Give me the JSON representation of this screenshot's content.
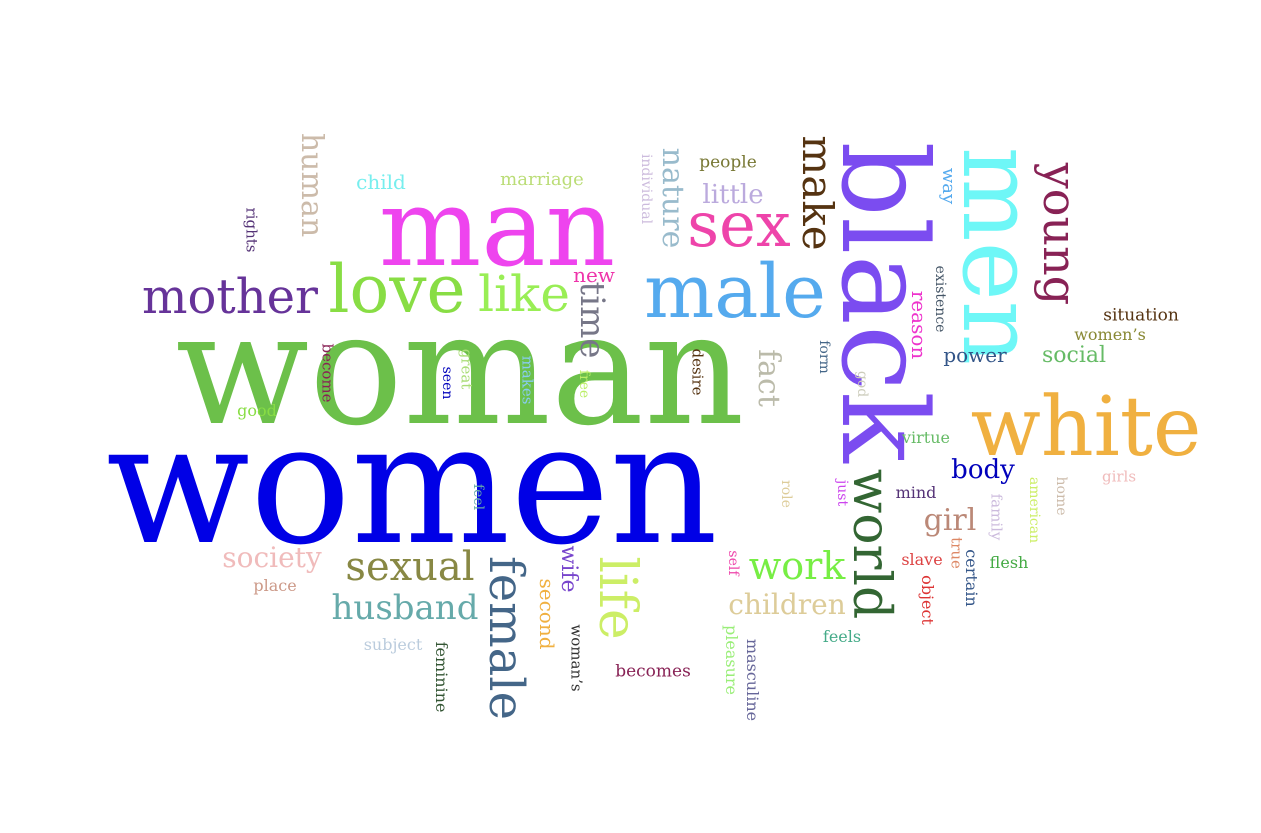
{
  "word_cloud": {
    "words": [
      {
        "key": "women",
        "text": "women",
        "color": "#0000e6"
      },
      {
        "key": "woman",
        "text": "woman",
        "color": "#6cc04a"
      },
      {
        "key": "man",
        "text": "man",
        "color": "#ee44ee"
      },
      {
        "key": "black",
        "text": "black",
        "color": "#7b4cf0"
      },
      {
        "key": "men",
        "text": "men",
        "color": "#6ef7f7"
      },
      {
        "key": "white",
        "text": "white",
        "color": "#f0b040"
      },
      {
        "key": "male",
        "text": "male",
        "color": "#55aaee"
      },
      {
        "key": "love",
        "text": "love",
        "color": "#88dd44"
      },
      {
        "key": "like",
        "text": "like",
        "color": "#99ee55"
      },
      {
        "key": "sex",
        "text": "sex",
        "color": "#ee44aa"
      },
      {
        "key": "mother",
        "text": "mother",
        "color": "#663399"
      },
      {
        "key": "female",
        "text": "female",
        "color": "#446688"
      },
      {
        "key": "life",
        "text": "life",
        "color": "#ccee66"
      },
      {
        "key": "world",
        "text": "world",
        "color": "#336633"
      },
      {
        "key": "young",
        "text": "young",
        "color": "#882255"
      },
      {
        "key": "sexual",
        "text": "sexual",
        "color": "#888844"
      },
      {
        "key": "make",
        "text": "make",
        "color": "#553311"
      },
      {
        "key": "husband",
        "text": "husband",
        "color": "#66aaaa"
      },
      {
        "key": "work",
        "text": "work",
        "color": "#77ee44"
      },
      {
        "key": "nature",
        "text": "nature",
        "color": "#99bbcc"
      },
      {
        "key": "human",
        "text": "human",
        "color": "#ccbbaa"
      },
      {
        "key": "time",
        "text": "time",
        "color": "#777788"
      },
      {
        "key": "society",
        "text": "society",
        "color": "#f0bbbb"
      },
      {
        "key": "children",
        "text": "children",
        "color": "#ddcc99"
      },
      {
        "key": "girl",
        "text": "girl",
        "color": "#bb8877"
      },
      {
        "key": "fact",
        "text": "fact",
        "color": "#bbbbaa"
      },
      {
        "key": "body",
        "text": "body",
        "color": "#0000bb"
      },
      {
        "key": "social",
        "text": "social",
        "color": "#66bb66"
      },
      {
        "key": "little",
        "text": "little",
        "color": "#bbaadd"
      },
      {
        "key": "reason",
        "text": "reason",
        "color": "#ee33cc"
      },
      {
        "key": "power",
        "text": "power",
        "color": "#335588"
      },
      {
        "key": "child",
        "text": "child",
        "color": "#77eeee"
      },
      {
        "key": "marriage",
        "text": "marriage",
        "color": "#bbdd77"
      },
      {
        "key": "wife",
        "text": "wife",
        "color": "#7744cc"
      },
      {
        "key": "second",
        "text": "second",
        "color": "#f0b040"
      },
      {
        "key": "new",
        "text": "new",
        "color": "#ee33aa"
      },
      {
        "key": "people",
        "text": "people",
        "color": "#777733"
      },
      {
        "key": "way",
        "text": "way",
        "color": "#55aaee"
      },
      {
        "key": "situation",
        "text": "situation",
        "color": "#553311"
      },
      {
        "key": "womens",
        "text": "women’s",
        "color": "#888833"
      },
      {
        "key": "virtue",
        "text": "virtue",
        "color": "#66bb66"
      },
      {
        "key": "mind",
        "text": "mind",
        "color": "#553377"
      },
      {
        "key": "slave",
        "text": "slave",
        "color": "#dd4444"
      },
      {
        "key": "flesh",
        "text": "flesh",
        "color": "#44aa44"
      },
      {
        "key": "certain",
        "text": "certain",
        "color": "#335588"
      },
      {
        "key": "object",
        "text": "object",
        "color": "#dd3333"
      },
      {
        "key": "true",
        "text": "true",
        "color": "#dd8866"
      },
      {
        "key": "feels",
        "text": "feels",
        "color": "#44aa88"
      },
      {
        "key": "becomes",
        "text": "becomes",
        "color": "#882255"
      },
      {
        "key": "masculine",
        "text": "masculine",
        "color": "#666699"
      },
      {
        "key": "pleasure",
        "text": "pleasure",
        "color": "#99ee77"
      },
      {
        "key": "womans",
        "text": "woman’s",
        "color": "#333333"
      },
      {
        "key": "feminine",
        "text": "feminine",
        "color": "#335533"
      },
      {
        "key": "subject",
        "text": "subject",
        "color": "#bbccdd"
      },
      {
        "key": "place",
        "text": "place",
        "color": "#cc9988"
      },
      {
        "key": "good",
        "text": "good",
        "color": "#88dd44"
      },
      {
        "key": "become",
        "text": "become",
        "color": "#882255"
      },
      {
        "key": "great",
        "text": "great",
        "color": "#aadd77"
      },
      {
        "key": "seen",
        "text": "seen",
        "color": "#0000bb"
      },
      {
        "key": "makes",
        "text": "makes",
        "color": "#88ccee"
      },
      {
        "key": "free",
        "text": "free",
        "color": "#bbee66"
      },
      {
        "key": "desire",
        "text": "desire",
        "color": "#553311"
      },
      {
        "key": "form",
        "text": "form",
        "color": "#446688"
      },
      {
        "key": "god",
        "text": "god",
        "color": "#ccccbb"
      },
      {
        "key": "existence",
        "text": "existence",
        "color": "#445566"
      },
      {
        "key": "just",
        "text": "just",
        "color": "#cc44ee"
      },
      {
        "key": "role",
        "text": "role",
        "color": "#ddcc99"
      },
      {
        "key": "self",
        "text": "self",
        "color": "#ee44aa"
      },
      {
        "key": "feel",
        "text": "feel",
        "color": "#66aaaa"
      },
      {
        "key": "individual",
        "text": "individual",
        "color": "#ccbbdd"
      },
      {
        "key": "rights",
        "text": "rights",
        "color": "#553377"
      },
      {
        "key": "american",
        "text": "american",
        "color": "#ccee66"
      },
      {
        "key": "home",
        "text": "home",
        "color": "#ccbbaa"
      },
      {
        "key": "family",
        "text": "family",
        "color": "#ccbbdd"
      },
      {
        "key": "girls",
        "text": "girls",
        "color": "#f0bbbb"
      }
    ],
    "rotated": [
      "black",
      "men",
      "young",
      "female",
      "life",
      "world",
      "make",
      "nature",
      "human",
      "time",
      "fact",
      "reason",
      "wife",
      "second",
      "way",
      "existence",
      "form",
      "god",
      "desire",
      "makes",
      "free",
      "great",
      "seen",
      "become",
      "feel",
      "just",
      "role",
      "self",
      "true",
      "object",
      "certain",
      "family",
      "american",
      "home",
      "pleasure",
      "masculine",
      "womans",
      "feminine",
      "individual",
      "rights"
    ]
  }
}
